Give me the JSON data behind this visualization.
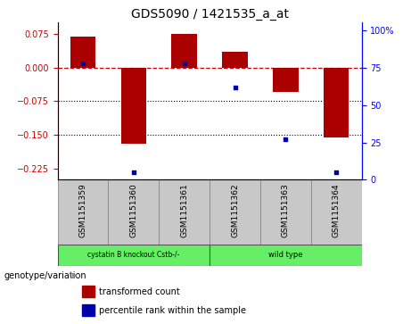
{
  "title": "GDS5090 / 1421535_a_at",
  "samples": [
    "GSM1151359",
    "GSM1151360",
    "GSM1151361",
    "GSM1151362",
    "GSM1151363",
    "GSM1151364"
  ],
  "bar_values": [
    0.07,
    -0.17,
    0.075,
    0.035,
    -0.055,
    -0.155
  ],
  "percentile_values": [
    78,
    5,
    78,
    62,
    27,
    5
  ],
  "ylim_left": [
    -0.25,
    0.1
  ],
  "ylim_right": [
    0,
    105
  ],
  "yticks_left": [
    0.075,
    0,
    -0.075,
    -0.15,
    -0.225
  ],
  "yticks_right": [
    100,
    75,
    50,
    25,
    0
  ],
  "bar_color": "#AA0000",
  "dot_color": "#0000AA",
  "group1_label": "cystatin B knockout Cstb-/-",
  "group2_label": "wild type",
  "group_color": "#66EE66",
  "box_color": "#C8C8C8",
  "legend_bar_label": "transformed count",
  "legend_dot_label": "percentile rank within the sample",
  "genotype_label": "genotype/variation",
  "zero_line_color": "#CC0000",
  "dotted_line_color": "black",
  "title_fontsize": 10,
  "tick_fontsize": 7,
  "label_fontsize": 6.5
}
